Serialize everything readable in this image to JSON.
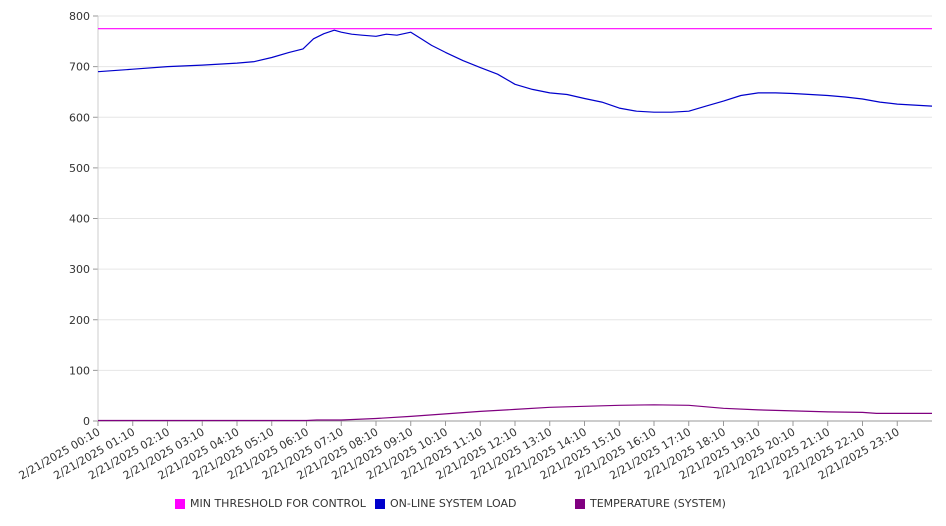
{
  "chart_data": {
    "type": "line",
    "title": "",
    "xlabel": "",
    "ylabel": "",
    "ylim": [
      0,
      800
    ],
    "yticks": [
      0,
      100,
      200,
      300,
      400,
      500,
      600,
      700,
      800
    ],
    "xlim": [
      0,
      24
    ],
    "xticks": [
      {
        "x": 0,
        "label": "2/21/2025 00:10"
      },
      {
        "x": 1,
        "label": "2/21/2025 01:10"
      },
      {
        "x": 2,
        "label": "2/21/2025 02:10"
      },
      {
        "x": 3,
        "label": "2/21/2025 03:10"
      },
      {
        "x": 4,
        "label": "2/21/2025 04:10"
      },
      {
        "x": 5,
        "label": "2/21/2025 05:10"
      },
      {
        "x": 6,
        "label": "2/21/2025 06:10"
      },
      {
        "x": 7,
        "label": "2/21/2025 07:10"
      },
      {
        "x": 8,
        "label": "2/21/2025 08:10"
      },
      {
        "x": 9,
        "label": "2/21/2025 09:10"
      },
      {
        "x": 10,
        "label": "2/21/2025 10:10"
      },
      {
        "x": 11,
        "label": "2/21/2025 11:10"
      },
      {
        "x": 12,
        "label": "2/21/2025 12:10"
      },
      {
        "x": 13,
        "label": "2/21/2025 13:10"
      },
      {
        "x": 14,
        "label": "2/21/2025 14:10"
      },
      {
        "x": 15,
        "label": "2/21/2025 15:10"
      },
      {
        "x": 16,
        "label": "2/21/2025 16:10"
      },
      {
        "x": 17,
        "label": "2/21/2025 17:10"
      },
      {
        "x": 18,
        "label": "2/21/2025 18:10"
      },
      {
        "x": 19,
        "label": "2/21/2025 19:10"
      },
      {
        "x": 20,
        "label": "2/21/2025 20:10"
      },
      {
        "x": 21,
        "label": "2/21/2025 21:10"
      },
      {
        "x": 22,
        "label": "2/21/2025 22:10"
      },
      {
        "x": 23,
        "label": "2/21/2025 23:10"
      }
    ],
    "grid": true,
    "legend_position": "bottom",
    "series": [
      {
        "name": "MIN THRESHOLD FOR CONTROL",
        "color": "#ff00ff",
        "points": [
          [
            0,
            775
          ],
          [
            24,
            775
          ]
        ]
      },
      {
        "name": "ON-LINE SYSTEM LOAD",
        "color": "#0000cc",
        "points": [
          [
            0,
            690
          ],
          [
            1,
            695
          ],
          [
            2,
            700
          ],
          [
            3,
            703
          ],
          [
            4,
            707
          ],
          [
            4.5,
            710
          ],
          [
            5,
            718
          ],
          [
            5.5,
            728
          ],
          [
            5.9,
            735
          ],
          [
            6.2,
            755
          ],
          [
            6.5,
            765
          ],
          [
            6.8,
            772
          ],
          [
            7,
            768
          ],
          [
            7.3,
            764
          ],
          [
            7.6,
            762
          ],
          [
            8,
            760
          ],
          [
            8.3,
            764
          ],
          [
            8.6,
            762
          ],
          [
            9,
            768
          ],
          [
            9.3,
            755
          ],
          [
            9.6,
            742
          ],
          [
            10,
            728
          ],
          [
            10.5,
            712
          ],
          [
            11,
            698
          ],
          [
            11.5,
            685
          ],
          [
            12,
            665
          ],
          [
            12.5,
            655
          ],
          [
            13,
            648
          ],
          [
            13.5,
            645
          ],
          [
            14,
            637
          ],
          [
            14.5,
            630
          ],
          [
            15,
            618
          ],
          [
            15.5,
            612
          ],
          [
            16,
            610
          ],
          [
            16.5,
            610
          ],
          [
            17,
            612
          ],
          [
            17.5,
            622
          ],
          [
            18,
            632
          ],
          [
            18.5,
            643
          ],
          [
            19,
            648
          ],
          [
            19.5,
            648
          ],
          [
            20,
            647
          ],
          [
            20.5,
            645
          ],
          [
            21,
            643
          ],
          [
            21.5,
            640
          ],
          [
            22,
            636
          ],
          [
            22.5,
            630
          ],
          [
            23,
            626
          ],
          [
            23.5,
            624
          ],
          [
            24,
            622
          ]
        ]
      },
      {
        "name": "TEMPERATURE (SYSTEM)",
        "color": "#800080",
        "points": [
          [
            0,
            1
          ],
          [
            6,
            1
          ],
          [
            6.3,
            2
          ],
          [
            7,
            2
          ],
          [
            8,
            5
          ],
          [
            9,
            9
          ],
          [
            10,
            14
          ],
          [
            11,
            19
          ],
          [
            12,
            23
          ],
          [
            13,
            27
          ],
          [
            14,
            29
          ],
          [
            15,
            31
          ],
          [
            16,
            32
          ],
          [
            17,
            31
          ],
          [
            17.5,
            28
          ],
          [
            18,
            25
          ],
          [
            19,
            22
          ],
          [
            20,
            20
          ],
          [
            21,
            18
          ],
          [
            22,
            17
          ],
          [
            22.4,
            15
          ],
          [
            24,
            15
          ]
        ]
      }
    ]
  }
}
